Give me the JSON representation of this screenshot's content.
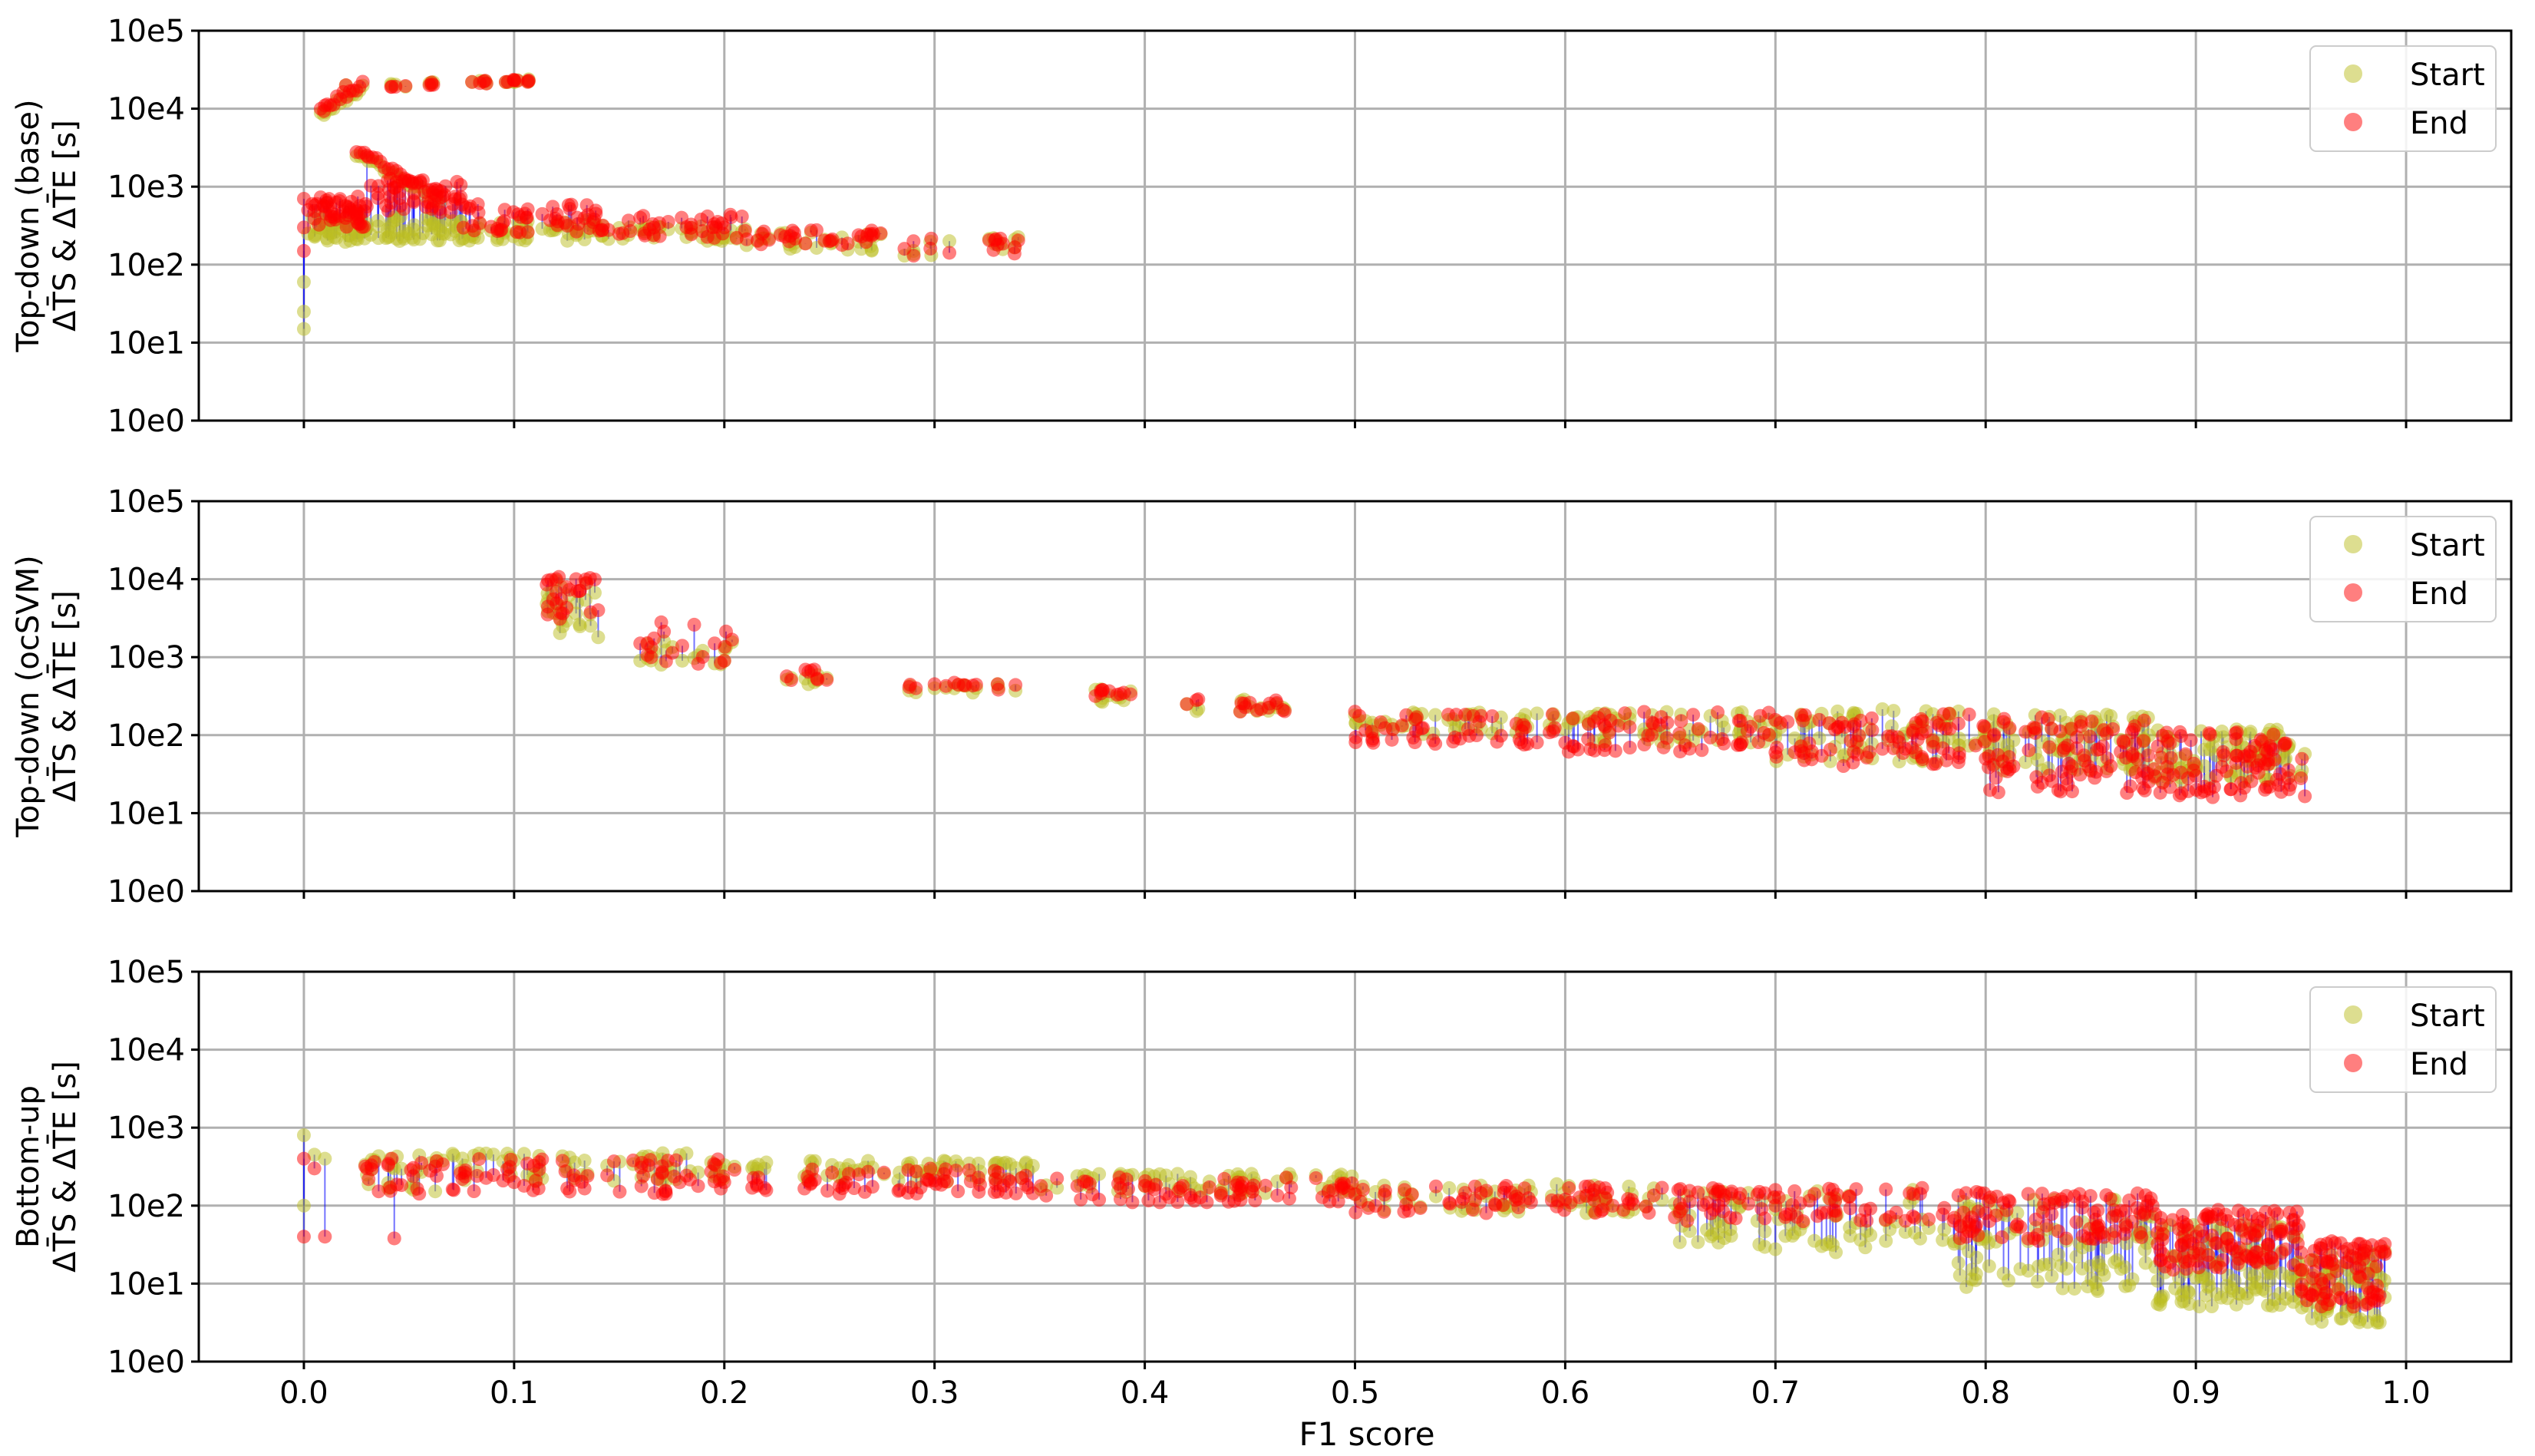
{
  "figure": {
    "xlabel": "F1 score",
    "colors": {
      "start": "#bcbd22",
      "end": "#ff0000",
      "connector": "#0000ff",
      "grid": "#b0b0b0"
    }
  },
  "chart_data": [
    {
      "type": "scatter",
      "ylabel_line1": "Top-down (base)",
      "ylabel_line2": "ΔT̄S & ΔT̄E [s]",
      "yscale": "log",
      "xlim": [
        -0.05,
        1.05
      ],
      "ylim_exp": [
        0,
        5
      ],
      "xticks": [
        0.0,
        0.1,
        0.2,
        0.3,
        0.4,
        0.5,
        0.6,
        0.7,
        0.8,
        0.9,
        1.0
      ],
      "xtick_labels": [
        "0.0",
        "0.1",
        "0.2",
        "0.3",
        "0.4",
        "0.5",
        "0.6",
        "0.7",
        "0.8",
        "0.9",
        "1.0"
      ],
      "ytick_labels": [
        "10e0",
        "10e1",
        "10e2",
        "10e3",
        "10e4",
        "10e5"
      ],
      "legend": {
        "placement": "top-right",
        "start": "Start",
        "end": "End"
      },
      "series": [
        {
          "name": "Start",
          "x": [
            0.0,
            0.0,
            0.0,
            0.002,
            0.004,
            0.006,
            0.01,
            0.02,
            0.03,
            0.05,
            0.08,
            0.1,
            0.13,
            0.16,
            0.2,
            0.25,
            0.29,
            0.33
          ],
          "y": [
            15,
            25,
            60,
            250,
            400,
            300,
            9000,
            20000,
            300,
            250,
            22000,
            23000,
            250,
            280,
            220,
            200,
            150,
            200
          ]
        },
        {
          "name": "End",
          "x": [
            0.0,
            0.0,
            0.0,
            0.002,
            0.004,
            0.006,
            0.01,
            0.02,
            0.03,
            0.05,
            0.08,
            0.1,
            0.13,
            0.16,
            0.2,
            0.25,
            0.29,
            0.33
          ],
          "y": [
            150,
            300,
            700,
            500,
            600,
            600,
            11000,
            20000,
            2500,
            1200,
            22000,
            23000,
            400,
            400,
            300,
            200,
            200,
            180
          ]
        }
      ],
      "cloud": [
        {
          "from": 0.005,
          "to": 0.03,
          "start": [
            180,
            450
          ],
          "end": [
            300,
            750
          ],
          "n": 50
        },
        {
          "from": 0.03,
          "to": 0.075,
          "start": [
            200,
            420
          ],
          "end": [
            450,
            1300
          ],
          "n": 50
        },
        {
          "from": 0.075,
          "to": 0.14,
          "start": [
            200,
            380
          ],
          "end": [
            250,
            600
          ],
          "n": 50
        },
        {
          "from": 0.14,
          "to": 0.21,
          "start": [
            200,
            320
          ],
          "end": [
            220,
            450
          ],
          "n": 40
        },
        {
          "from": 0.21,
          "to": 0.275,
          "start": [
            150,
            260
          ],
          "end": [
            160,
            280
          ],
          "n": 30
        },
        {
          "from": 0.285,
          "to": 0.345,
          "start": [
            130,
            250
          ],
          "end": [
            120,
            220
          ],
          "n": 14
        }
      ],
      "trail": [
        {
          "from": 0.008,
          "to": 0.028,
          "logFrom": 4.0,
          "logTo": 4.32,
          "n": 14
        },
        {
          "from": 0.025,
          "to": 0.065,
          "logFrom": 3.5,
          "logTo": 2.85,
          "n": 22
        }
      ],
      "clusters": [
        {
          "x": 0.045,
          "y": 20000
        },
        {
          "x": 0.06,
          "y": 21000
        },
        {
          "x": 0.085,
          "y": 22000
        },
        {
          "x": 0.1,
          "y": 23000
        },
        {
          "x": 0.105,
          "y": 23000
        }
      ]
    },
    {
      "type": "scatter",
      "ylabel_line1": "Top-down (ocSVM)",
      "ylabel_line2": "ΔT̄S & ΔT̄E [s]",
      "yscale": "log",
      "xlim": [
        -0.05,
        1.05
      ],
      "ylim_exp": [
        0,
        5
      ],
      "xticks": [
        0.0,
        0.1,
        0.2,
        0.3,
        0.4,
        0.5,
        0.6,
        0.7,
        0.8,
        0.9,
        1.0
      ],
      "xtick_labels": [
        "0.0",
        "0.1",
        "0.2",
        "0.3",
        "0.4",
        "0.5",
        "0.6",
        "0.7",
        "0.8",
        "0.9",
        "1.0"
      ],
      "ytick_labels": [
        "10e0",
        "10e1",
        "10e2",
        "10e3",
        "10e4",
        "10e5"
      ],
      "legend": {
        "placement": "top-right",
        "start": "Start",
        "end": "End"
      },
      "series": [
        {
          "name": "Start",
          "x": [
            0.12,
            0.13,
            0.14,
            0.16,
            0.17,
            0.18,
            0.2,
            0.24,
            0.3,
            0.33,
            0.38,
            0.39,
            0.42,
            0.45,
            0.5,
            0.55,
            0.6,
            0.7,
            0.8,
            0.85,
            0.9,
            0.95
          ],
          "y": [
            9500,
            5000,
            1800,
            900,
            800,
            900,
            900,
            450,
            400,
            450,
            300,
            280,
            250,
            230,
            180,
            150,
            120,
            110,
            90,
            70,
            40,
            30
          ]
        },
        {
          "name": "End",
          "x": [
            0.12,
            0.13,
            0.14,
            0.16,
            0.17,
            0.18,
            0.2,
            0.24,
            0.3,
            0.33,
            0.38,
            0.39,
            0.42,
            0.45,
            0.5,
            0.55,
            0.6,
            0.7,
            0.8,
            0.85,
            0.9,
            0.95
          ],
          "y": [
            10000,
            7000,
            4000,
            1500,
            2800,
            1400,
            900,
            650,
            450,
            450,
            380,
            350,
            250,
            260,
            200,
            90,
            80,
            60,
            50,
            35,
            30,
            28
          ]
        }
      ],
      "cloud": [
        {
          "from": 0.115,
          "to": 0.14,
          "start": [
            1800,
            9500
          ],
          "end": [
            3000,
            11000
          ],
          "n": 24
        },
        {
          "from": 0.16,
          "to": 0.205,
          "start": [
            800,
            1600
          ],
          "end": [
            800,
            2800
          ],
          "n": 16
        },
        {
          "from": 0.22,
          "to": 0.25,
          "start": [
            450,
            600
          ],
          "end": [
            500,
            700
          ],
          "n": 8
        },
        {
          "from": 0.285,
          "to": 0.34,
          "start": [
            350,
            480
          ],
          "end": [
            380,
            480
          ],
          "n": 12
        },
        {
          "from": 0.375,
          "to": 0.395,
          "start": [
            220,
            400
          ],
          "end": [
            280,
            400
          ],
          "n": 8
        },
        {
          "from": 0.42,
          "to": 0.47,
          "start": [
            180,
            300
          ],
          "end": [
            200,
            300
          ],
          "n": 14
        },
        {
          "from": 0.5,
          "to": 0.6,
          "start": [
            100,
            200
          ],
          "end": [
            75,
            190
          ],
          "n": 50
        },
        {
          "from": 0.6,
          "to": 0.7,
          "start": [
            80,
            200
          ],
          "end": [
            60,
            200
          ],
          "n": 60
        },
        {
          "from": 0.7,
          "to": 0.8,
          "start": [
            45,
            220
          ],
          "end": [
            40,
            190
          ],
          "n": 80
        },
        {
          "from": 0.8,
          "to": 0.88,
          "start": [
            35,
            190
          ],
          "end": [
            18,
            180
          ],
          "n": 90
        },
        {
          "from": 0.88,
          "to": 0.952,
          "start": [
            25,
            120
          ],
          "end": [
            16,
            110
          ],
          "n": 90
        }
      ],
      "trail": [],
      "clusters": []
    },
    {
      "type": "scatter",
      "ylabel_line1": "Bottom-up",
      "ylabel_line2": "ΔT̄S & ΔT̄E [s]",
      "yscale": "log",
      "xlim": [
        -0.05,
        1.05
      ],
      "ylim_exp": [
        0,
        5
      ],
      "xticks": [
        0.0,
        0.1,
        0.2,
        0.3,
        0.4,
        0.5,
        0.6,
        0.7,
        0.8,
        0.9,
        1.0
      ],
      "xtick_labels": [
        "0.0",
        "0.1",
        "0.2",
        "0.3",
        "0.4",
        "0.5",
        "0.6",
        "0.7",
        "0.8",
        "0.9",
        "1.0"
      ],
      "ytick_labels": [
        "10e0",
        "10e1",
        "10e2",
        "10e3",
        "10e4",
        "10e5"
      ],
      "legend": {
        "placement": "top-right",
        "start": "Start",
        "end": "End"
      },
      "series": [
        {
          "name": "Start",
          "x": [
            0.0,
            0.0,
            0.005,
            0.01,
            0.03,
            0.043,
            0.06,
            0.1,
            0.2,
            0.3,
            0.4,
            0.5,
            0.6,
            0.7,
            0.8,
            0.9,
            0.95,
            0.985
          ],
          "y": [
            800,
            100,
            450,
            400,
            250,
            300,
            350,
            380,
            330,
            300,
            230,
            160,
            110,
            90,
            40,
            12,
            8,
            4
          ]
        },
        {
          "name": "End",
          "x": [
            0.0,
            0.0,
            0.005,
            0.01,
            0.03,
            0.043,
            0.06,
            0.1,
            0.2,
            0.3,
            0.4,
            0.5,
            0.6,
            0.7,
            0.8,
            0.9,
            0.95,
            0.985
          ],
          "y": [
            40,
            400,
            300,
            40,
            300,
            38,
            280,
            200,
            200,
            210,
            180,
            140,
            120,
            100,
            80,
            40,
            25,
            6
          ]
        }
      ],
      "cloud": [
        {
          "from": 0.028,
          "to": 0.065,
          "start": [
            150,
            450
          ],
          "end": [
            130,
            400
          ],
          "n": 22
        },
        {
          "from": 0.065,
          "to": 0.2,
          "start": [
            200,
            480
          ],
          "end": [
            140,
            400
          ],
          "n": 70
        },
        {
          "from": 0.2,
          "to": 0.35,
          "start": [
            200,
            380
          ],
          "end": [
            140,
            300
          ],
          "n": 70
        },
        {
          "from": 0.35,
          "to": 0.5,
          "start": [
            140,
            260
          ],
          "end": [
            110,
            230
          ],
          "n": 70
        },
        {
          "from": 0.5,
          "to": 0.65,
          "start": [
            80,
            190
          ],
          "end": [
            80,
            180
          ],
          "n": 70
        },
        {
          "from": 0.65,
          "to": 0.78,
          "start": [
            25,
            160
          ],
          "end": [
            60,
            170
          ],
          "n": 80
        },
        {
          "from": 0.78,
          "to": 0.88,
          "start": [
            8,
            120
          ],
          "end": [
            35,
            150
          ],
          "n": 100
        },
        {
          "from": 0.88,
          "to": 0.95,
          "start": [
            5,
            60
          ],
          "end": [
            15,
            90
          ],
          "n": 120
        },
        {
          "from": 0.95,
          "to": 0.99,
          "start": [
            3,
            30
          ],
          "end": [
            5,
            35
          ],
          "n": 80
        }
      ],
      "trail": [],
      "clusters": []
    }
  ]
}
